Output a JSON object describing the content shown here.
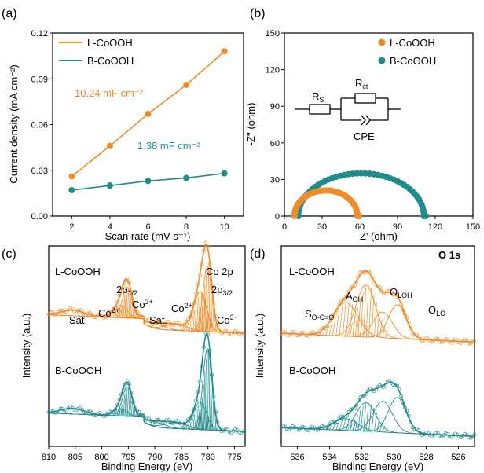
{
  "colors": {
    "orange": "#F08C28",
    "teal": "#1E8C8A"
  },
  "chart_data": [
    {
      "panel": "(a)",
      "type": "line",
      "xlabel": "Scan rate (mV s⁻¹)",
      "ylabel": "Current density (mA cm⁻²)",
      "xlim": [
        1,
        11
      ],
      "ylim": [
        0,
        0.12
      ],
      "xticks": [
        "2",
        "4",
        "6",
        "8",
        "10"
      ],
      "yticks": [
        "0.00",
        "0.03",
        "0.06",
        "0.09",
        "0.12"
      ],
      "x": [
        2,
        4,
        6,
        8,
        10
      ],
      "series": [
        {
          "name": "L-CoOOH",
          "color": "#F08C28",
          "values": [
            0.026,
            0.046,
            0.067,
            0.086,
            0.108
          ]
        },
        {
          "name": "B-CoOOH",
          "color": "#1E8C8A",
          "values": [
            0.017,
            0.02,
            0.023,
            0.025,
            0.028
          ]
        }
      ],
      "annotations": [
        "10.24 mF cm⁻²",
        "1.38 mF cm⁻²"
      ],
      "legend": "top-left"
    },
    {
      "panel": "(b)",
      "type": "scatter",
      "xlabel": "Z' (ohm)",
      "ylabel": "-Z'' (ohm)",
      "xlim": [
        0,
        150
      ],
      "ylim": [
        0,
        150
      ],
      "xticks": [
        "0",
        "30",
        "60",
        "90",
        "120",
        "150"
      ],
      "yticks": [
        "0",
        "30",
        "60",
        "90",
        "120",
        "150"
      ],
      "series": [
        {
          "name": "L-CoOOH",
          "color": "#F08C28",
          "semicircle": {
            "start": 8,
            "end": 58,
            "peak": 21
          }
        },
        {
          "name": "B-CoOOH",
          "color": "#1E8C8A",
          "semicircle": {
            "start": 11,
            "end": 111,
            "peak": 35
          }
        }
      ],
      "circuit_labels": [
        "R",
        "S",
        "R",
        "ct",
        "CPE"
      ],
      "legend": "top-right"
    },
    {
      "panel": "(c)",
      "type": "line",
      "xlabel": "Binding Energy (eV)",
      "ylabel": "Intensity (a.u.)",
      "xlim": [
        810,
        773
      ],
      "xticks": [
        "810",
        "805",
        "800",
        "795",
        "790",
        "785",
        "780",
        "775"
      ],
      "series": [
        {
          "name": "L-CoOOH",
          "color": "#F08C28",
          "peaks_eV": [
            805.5,
            796.5,
            795.2,
            790,
            781.5,
            780.1
          ]
        },
        {
          "name": "B-CoOOH",
          "color": "#1E8C8A",
          "peaks_eV": [
            805.5,
            796.5,
            795.2,
            790,
            781.5,
            780.1
          ]
        }
      ],
      "peak_labels": {
        "sat1": "Sat.",
        "co2a": "Co",
        "co2a_sup": "2+",
        "p12": "2p",
        "p12_sub": "1/2",
        "co3a": "Co",
        "co3a_sup": "3+",
        "sat2": "Sat.",
        "co2b": "Co",
        "co2b_sup": "2+",
        "co2p": "Co 2p",
        "p32": "2p",
        "p32_sub": "3/2",
        "co3b": "Co",
        "co3b_sup": "3+"
      }
    },
    {
      "panel": "(d)",
      "type": "line",
      "title": "O 1s",
      "xlabel": "Binding Energy (eV)",
      "ylabel": "Intensity (a.u.)",
      "xlim": [
        537,
        525
      ],
      "xticks": [
        "536",
        "534",
        "532",
        "530",
        "528",
        "526"
      ],
      "series": [
        {
          "name": "L-CoOOH",
          "color": "#F08C28",
          "peaks_eV": [
            533.0,
            531.8,
            530.7,
            529.8
          ]
        },
        {
          "name": "B-CoOOH",
          "color": "#1E8C8A",
          "peaks_eV": [
            533.0,
            531.8,
            530.7,
            529.8
          ]
        }
      ],
      "peak_labels": {
        "s": "S",
        "s_sub": "O-C=O",
        "a": "A",
        "a_sub": "OH",
        "oloh": "O",
        "oloh_sub": "LOH",
        "olo": "O",
        "olo_sub": "LO"
      }
    }
  ]
}
